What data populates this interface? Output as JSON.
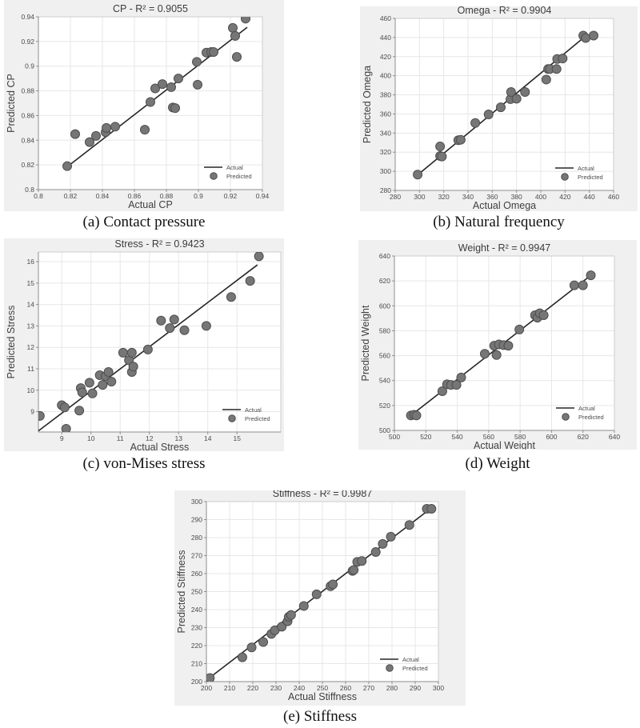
{
  "figure_title": "Actual vs Predicted regression scatter plots",
  "colors": {
    "panel_bg": "#f0f0f0",
    "plot_bg": "#ffffff",
    "grid": "#e7e7e7",
    "box": "#cccccc",
    "axis": "#8e8e8e",
    "tick_text": "#4c4c4c",
    "title_text": "#3c3c3c",
    "label_text": "#3f3f3f",
    "caption_text": "#111111",
    "line": "#262626",
    "marker_fill": "#767676",
    "marker_edge": "#4e4e4e"
  },
  "legend": {
    "line_label": "Actual",
    "marker_label": "Predicted",
    "position": "bottom-right"
  },
  "chart_data": [
    {
      "id": "cp",
      "type": "scatter",
      "title": "CP - R² = 0.9055",
      "xlabel": "Actual CP",
      "ylabel": "Predicted CP",
      "caption": "(a) Contact pressure",
      "grid": true,
      "xlim": [
        0.8,
        0.94
      ],
      "ylim": [
        0.8,
        0.94
      ],
      "xticks": [
        0.8,
        0.82,
        0.84,
        0.86,
        0.88,
        0.9,
        0.92,
        0.94
      ],
      "xtick_labels": [
        "0.8",
        "0.82",
        "0.84",
        "0.86",
        "0.88",
        "0.9",
        "0.92",
        "0.94"
      ],
      "yticks": [
        0.8,
        0.82,
        0.84,
        0.86,
        0.88,
        0.9,
        0.92,
        0.94
      ],
      "ytick_labels": [
        "0.8",
        "0.82",
        "0.84",
        "0.86",
        "0.88",
        "0.9",
        "0.92",
        "0.94"
      ],
      "series": [
        {
          "name": "Actual",
          "type": "line",
          "points": [
            [
              0.8175,
              0.818
            ],
            [
              0.9305,
              0.9315
            ]
          ]
        },
        {
          "name": "Predicted",
          "type": "scatter",
          "points": [
            [
              0.818,
              0.819
            ],
            [
              0.823,
              0.845
            ],
            [
              0.832,
              0.8385
            ],
            [
              0.836,
              0.8435
            ],
            [
              0.842,
              0.8465
            ],
            [
              0.8425,
              0.85
            ],
            [
              0.848,
              0.851
            ],
            [
              0.8665,
              0.8485
            ],
            [
              0.87,
              0.871
            ],
            [
              0.873,
              0.882
            ],
            [
              0.8775,
              0.8855
            ],
            [
              0.883,
              0.883
            ],
            [
              0.884,
              0.8665
            ],
            [
              0.8855,
              0.866
            ],
            [
              0.8875,
              0.89
            ],
            [
              0.899,
              0.9035
            ],
            [
              0.8995,
              0.885
            ],
            [
              0.905,
              0.911
            ],
            [
              0.908,
              0.9115
            ],
            [
              0.9095,
              0.9115
            ],
            [
              0.9215,
              0.931
            ],
            [
              0.923,
              0.9245
            ],
            [
              0.924,
              0.9075
            ],
            [
              0.9295,
              0.9385
            ]
          ]
        }
      ]
    },
    {
      "id": "omega",
      "type": "scatter",
      "title": "Omega - R² = 0.9904",
      "xlabel": "Actual Omega",
      "ylabel": "Predicted Omega",
      "caption": "(b) Natural frequency",
      "grid": true,
      "xlim": [
        280,
        460
      ],
      "ylim": [
        280,
        460
      ],
      "xticks": [
        280,
        300,
        320,
        340,
        360,
        380,
        400,
        420,
        440,
        460
      ],
      "xtick_labels": [
        "280",
        "300",
        "320",
        "340",
        "360",
        "380",
        "400",
        "420",
        "440",
        "460"
      ],
      "yticks": [
        280,
        300,
        320,
        340,
        360,
        380,
        400,
        420,
        440,
        460
      ],
      "ytick_labels": [
        "280",
        "300",
        "320",
        "340",
        "360",
        "380",
        "400",
        "420",
        "440",
        "460"
      ],
      "series": [
        {
          "name": "Actual",
          "type": "line",
          "points": [
            [
              298.5,
              296.2
            ],
            [
              436,
              440.5
            ]
          ]
        },
        {
          "name": "Predicted",
          "type": "scatter",
          "points": [
            [
              298.5,
              296.5
            ],
            [
              317,
              326
            ],
            [
              317,
              316
            ],
            [
              318.5,
              315.5
            ],
            [
              332,
              332.5
            ],
            [
              334,
              333
            ],
            [
              346,
              350.5
            ],
            [
              357,
              359.5
            ],
            [
              367,
              367
            ],
            [
              375,
              375.5
            ],
            [
              375.5,
              383
            ],
            [
              380,
              376
            ],
            [
              387,
              383
            ],
            [
              404.5,
              396
            ],
            [
              406,
              407
            ],
            [
              407.5,
              407
            ],
            [
              413,
              407
            ],
            [
              413.5,
              417.5
            ],
            [
              418,
              418
            ],
            [
              435,
              442
            ],
            [
              437,
              439.5
            ],
            [
              443.5,
              442
            ]
          ]
        }
      ]
    },
    {
      "id": "stress",
      "type": "scatter",
      "title": "Stress - R² = 0.9423",
      "xlabel": "Actual Stress",
      "ylabel": "Predicted Stress",
      "caption": "(c) von-Mises stress",
      "grid": true,
      "xlim": [
        8.2,
        16.5
      ],
      "ylim": [
        8.05,
        16.45
      ],
      "xticks": [
        9,
        10,
        11,
        12,
        13,
        14,
        15
      ],
      "xtick_labels": [
        "9",
        "10",
        "11",
        "12",
        "13",
        "14",
        "15"
      ],
      "yticks": [
        9,
        10,
        11,
        12,
        13,
        14,
        15,
        16
      ],
      "ytick_labels": [
        "9",
        "10",
        "11",
        "12",
        "13",
        "14",
        "15",
        "16"
      ],
      "series": [
        {
          "name": "Actual",
          "type": "line",
          "points": [
            [
              8.2,
              8.1
            ],
            [
              15.7,
              15.85
            ]
          ]
        },
        {
          "name": "Predicted",
          "type": "scatter",
          "points": [
            [
              8.25,
              8.8
            ],
            [
              9.0,
              9.3
            ],
            [
              9.1,
              9.2
            ],
            [
              9.15,
              8.2
            ],
            [
              9.6,
              9.05
            ],
            [
              9.65,
              10.1
            ],
            [
              9.7,
              9.9
            ],
            [
              9.95,
              10.35
            ],
            [
              10.05,
              9.85
            ],
            [
              10.3,
              10.7
            ],
            [
              10.4,
              10.25
            ],
            [
              10.5,
              10.65
            ],
            [
              10.6,
              10.85
            ],
            [
              10.7,
              10.4
            ],
            [
              11.1,
              11.75
            ],
            [
              11.3,
              11.4
            ],
            [
              11.4,
              11.75
            ],
            [
              11.4,
              10.85
            ],
            [
              11.45,
              11.1
            ],
            [
              11.95,
              11.9
            ],
            [
              12.4,
              13.25
            ],
            [
              12.7,
              12.9
            ],
            [
              12.85,
              13.3
            ],
            [
              13.2,
              12.8
            ],
            [
              13.95,
              13.0
            ],
            [
              14.8,
              14.35
            ],
            [
              15.45,
              15.1
            ],
            [
              15.75,
              16.25
            ]
          ]
        }
      ]
    },
    {
      "id": "weight",
      "type": "scatter",
      "title": "Weight - R² = 0.9947",
      "xlabel": "Actual Weight",
      "ylabel": "Predicted Weight",
      "caption": "(d) Weight",
      "grid": true,
      "xlim": [
        500,
        640
      ],
      "ylim": [
        500,
        640
      ],
      "xticks": [
        500,
        520,
        540,
        560,
        580,
        600,
        620,
        640
      ],
      "xtick_labels": [
        "500",
        "520",
        "540",
        "560",
        "580",
        "600",
        "620",
        "640"
      ],
      "yticks": [
        500,
        520,
        540,
        560,
        580,
        600,
        620,
        640
      ],
      "ytick_labels": [
        "500",
        "520",
        "540",
        "560",
        "580",
        "600",
        "620",
        "640"
      ],
      "series": [
        {
          "name": "Actual",
          "type": "line",
          "points": [
            [
              510.5,
              512
            ],
            [
              625,
              624.5
            ]
          ]
        },
        {
          "name": "Predicted",
          "type": "scatter",
          "points": [
            [
              510.5,
              512
            ],
            [
              512.5,
              512.5
            ],
            [
              514,
              512
            ],
            [
              530.5,
              531.5
            ],
            [
              533.5,
              537
            ],
            [
              536,
              536.5
            ],
            [
              539.5,
              536.5
            ],
            [
              542.5,
              542.5
            ],
            [
              557.5,
              561.5
            ],
            [
              563.5,
              568
            ],
            [
              565,
              560.5
            ],
            [
              566.5,
              569
            ],
            [
              569.5,
              568.5
            ],
            [
              572.5,
              568
            ],
            [
              579.5,
              581
            ],
            [
              589.5,
              592.5
            ],
            [
              591,
              590.5
            ],
            [
              592.5,
              594
            ],
            [
              595,
              592.5
            ],
            [
              614.5,
              616.5
            ],
            [
              620,
              616.5
            ],
            [
              625,
              624.5
            ]
          ]
        }
      ]
    },
    {
      "id": "stiffness",
      "type": "scatter",
      "title": "Stiffness - R² = 0.9987",
      "xlabel": "Actual Stiffness",
      "ylabel": "Predicted Stiffness",
      "caption": "(e) Stiffness",
      "grid": true,
      "xlim": [
        200,
        300
      ],
      "ylim": [
        200,
        300
      ],
      "xticks": [
        200,
        210,
        220,
        230,
        240,
        250,
        260,
        270,
        280,
        290,
        300
      ],
      "xtick_labels": [
        "200",
        "210",
        "220",
        "230",
        "240",
        "250",
        "260",
        "270",
        "280",
        "290",
        "300"
      ],
      "yticks": [
        200,
        210,
        220,
        230,
        240,
        250,
        260,
        270,
        280,
        290,
        300
      ],
      "ytick_labels": [
        "200",
        "210",
        "220",
        "230",
        "240",
        "250",
        "260",
        "270",
        "280",
        "290",
        "300"
      ],
      "series": [
        {
          "name": "Actual",
          "type": "line",
          "points": [
            [
              201.5,
              202.3
            ],
            [
              296.5,
              296
            ]
          ]
        },
        {
          "name": "Predicted",
          "type": "scatter",
          "points": [
            [
              201.5,
              202
            ],
            [
              215.5,
              213.5
            ],
            [
              219.5,
              219
            ],
            [
              224.5,
              222
            ],
            [
              228,
              226.5
            ],
            [
              229.5,
              228.5
            ],
            [
              232.5,
              230.5
            ],
            [
              235,
              233.5
            ],
            [
              235.5,
              236
            ],
            [
              236.5,
              237
            ],
            [
              242,
              242
            ],
            [
              247.5,
              248.5
            ],
            [
              253.5,
              253
            ],
            [
              254.5,
              254
            ],
            [
              263,
              261.5
            ],
            [
              263.5,
              262
            ],
            [
              265,
              266.5
            ],
            [
              267,
              267
            ],
            [
              273,
              272
            ],
            [
              276,
              276.5
            ],
            [
              279.5,
              280.5
            ],
            [
              287.5,
              287
            ],
            [
              295,
              296
            ],
            [
              297,
              296
            ]
          ]
        }
      ]
    }
  ]
}
